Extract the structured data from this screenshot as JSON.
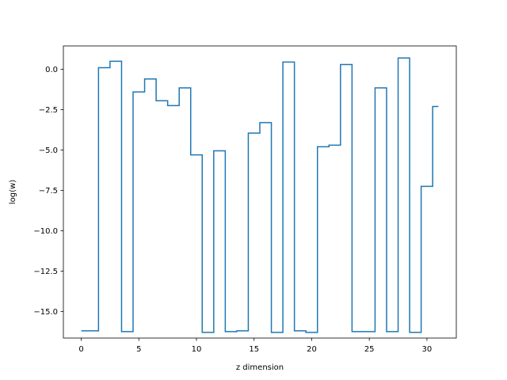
{
  "chart_data": {
    "type": "line",
    "drawstyle": "steps-mid",
    "title": "",
    "xlabel": "z dimension",
    "ylabel": "log(w)",
    "xlim": [
      -1.55,
      32.55
    ],
    "ylim": [
      -16.65,
      1.45
    ],
    "xticks": [
      0,
      5,
      10,
      15,
      20,
      25,
      30
    ],
    "xtick_labels": [
      "0",
      "5",
      "10",
      "15",
      "20",
      "25",
      "30"
    ],
    "yticks": [
      -15.0,
      -12.5,
      -10.0,
      -7.5,
      -5.0,
      -2.5,
      0.0
    ],
    "ytick_labels": [
      "−15.0",
      "−12.5",
      "−10.0",
      "−7.5",
      "−5.0",
      "−2.5",
      "0.0"
    ],
    "grid": false,
    "legend": "none",
    "series": [
      {
        "color": "#1f77b4",
        "x": [
          0,
          1,
          2,
          3,
          4,
          5,
          6,
          7,
          8,
          9,
          10,
          11,
          12,
          13,
          14,
          15,
          16,
          17,
          18,
          19,
          20,
          21,
          22,
          23,
          24,
          25,
          26,
          27,
          28,
          29,
          30,
          31
        ],
        "y": [
          -16.2,
          -16.2,
          0.1,
          0.5,
          -16.25,
          -1.4,
          -0.6,
          -1.95,
          -2.25,
          -1.15,
          -5.3,
          -16.3,
          -5.05,
          -16.25,
          -16.2,
          -3.95,
          -3.3,
          -16.3,
          0.45,
          -16.2,
          -16.3,
          -4.8,
          -4.7,
          0.3,
          -16.25,
          -16.25,
          -1.15,
          -16.25,
          0.7,
          -16.3,
          -7.25,
          -2.3
        ]
      }
    ]
  }
}
